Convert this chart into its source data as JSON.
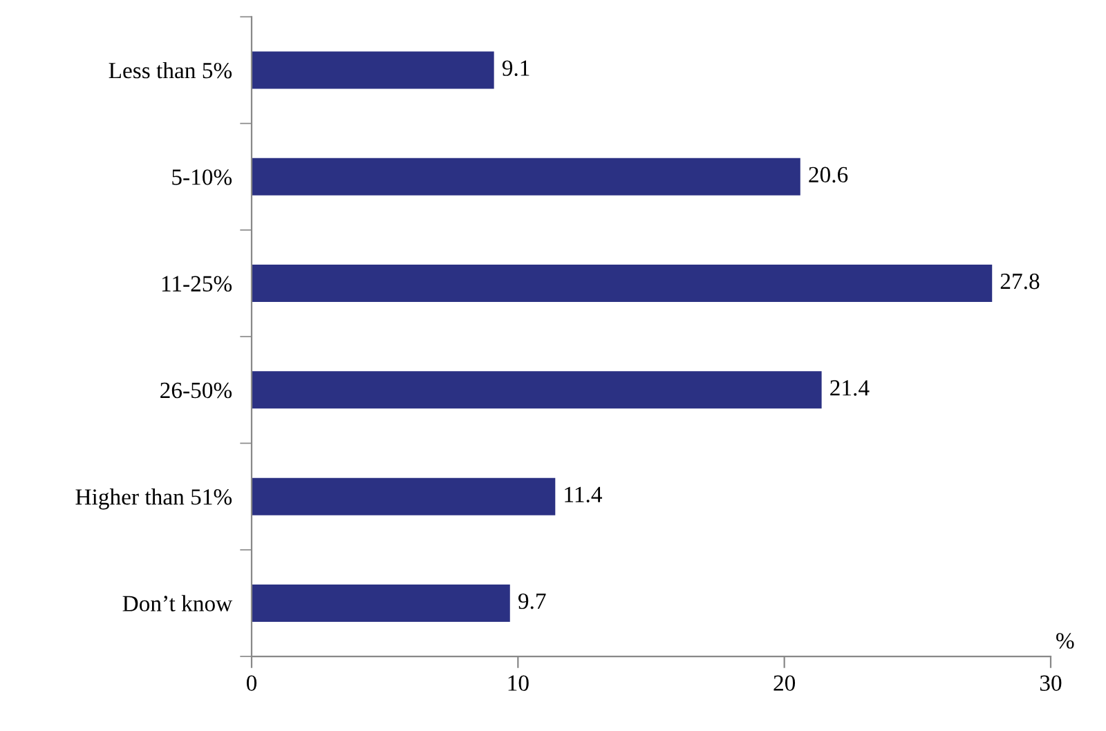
{
  "chart_data": {
    "type": "bar",
    "orientation": "horizontal",
    "xlabel": "%",
    "categories": [
      "Less than 5%",
      "5-10%",
      "11-25%",
      "26-50%",
      "Higher than 51%",
      "Don’t know"
    ],
    "values": [
      9.1,
      20.6,
      27.8,
      21.4,
      11.4,
      9.7
    ],
    "color": "#2b3183",
    "xlim": [
      0,
      30
    ],
    "xticks": [
      0,
      10,
      20,
      30
    ],
    "data_labels": true,
    "grid": false,
    "legend": false
  }
}
